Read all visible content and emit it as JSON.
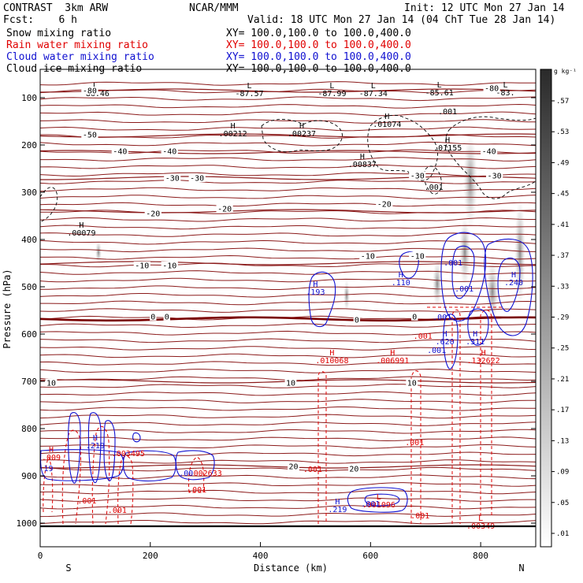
{
  "header": {
    "model": "CONTRAST  3km ARW",
    "org": "NCAR/MMM",
    "init": "Init: 12 UTC Mon 27 Jan 14",
    "fcst": "Fcst:    6 h",
    "valid": "Valid: 18 UTC Mon 27 Jan 14 (04 ChT Tue 28 Jan 14)"
  },
  "legend": [
    {
      "name": "Snow mixing ratio",
      "xy": "XY= 100.0,100.0 to 100.0,400.0",
      "color": "#000000"
    },
    {
      "name": "Rain water mixing ratio",
      "xy": "XY= 100.0,100.0 to 100.0,400.0",
      "color": "#e00000"
    },
    {
      "name": "Cloud water mixing ratio",
      "xy": "XY= 100.0,100.0 to 100.0,400.0",
      "color": "#1010d0"
    },
    {
      "name": "Cloud ice mixing ratio",
      "xy": "XY= 100.0,100.0 to 100.0,400.0",
      "color": "#000000"
    }
  ],
  "colorbar": {
    "unit": "g kg⁻¹",
    "ticks": [
      ".01",
      ".05",
      ".09",
      ".13",
      ".17",
      ".21",
      ".25",
      ".29",
      ".33",
      ".37",
      ".41",
      ".45",
      ".49",
      ".53",
      ".57"
    ]
  },
  "colors": {
    "temperature": "#8b1a1a",
    "zero_isotherm": "#7a0000",
    "rain": "#e00000",
    "cloud_water": "#1010d0",
    "ice": "#000000"
  },
  "chart_data": {
    "type": "contour-cross-section",
    "ylabel": "Pressure (hPa)",
    "xlabel": "Distance (km)",
    "xlim": [
      0,
      900
    ],
    "ylim": [
      1050,
      40
    ],
    "xticks": [
      0,
      200,
      400,
      600,
      800
    ],
    "yticks": [
      100,
      200,
      300,
      400,
      500,
      600,
      700,
      800,
      900,
      1000
    ],
    "end_labels": {
      "left": "S",
      "right": "N"
    },
    "isotherms": [
      {
        "temp": -80,
        "p": 85
      },
      {
        "temp": -50,
        "p": 180
      },
      {
        "temp": -40,
        "p": 215
      },
      {
        "temp": -30,
        "p": 270
      },
      {
        "temp": -20,
        "p": 340
      },
      {
        "temp": -10,
        "p": 450
      },
      {
        "temp": 0,
        "p": 568
      },
      {
        "temp": 10,
        "p": 700
      },
      {
        "temp": 20,
        "p": 880
      }
    ],
    "temperature_labels": [
      {
        "text": "-80",
        "x": 90,
        "p": 85
      },
      {
        "text": "-80",
        "x": 820,
        "p": 80
      },
      {
        "text": "-50",
        "x": 90,
        "p": 178
      },
      {
        "text": "-40",
        "x": 145,
        "p": 213
      },
      {
        "text": "-40",
        "x": 235,
        "p": 213
      },
      {
        "text": "-40",
        "x": 815,
        "p": 213
      },
      {
        "text": "-30",
        "x": 240,
        "p": 270
      },
      {
        "text": "-30",
        "x": 285,
        "p": 270
      },
      {
        "text": "-30",
        "x": 685,
        "p": 265
      },
      {
        "text": "-30",
        "x": 825,
        "p": 265
      },
      {
        "text": "-20",
        "x": 205,
        "p": 345
      },
      {
        "text": "-20",
        "x": 335,
        "p": 335
      },
      {
        "text": "-20",
        "x": 625,
        "p": 325
      },
      {
        "text": "-10",
        "x": 185,
        "p": 455
      },
      {
        "text": "-10",
        "x": 235,
        "p": 455
      },
      {
        "text": "-10",
        "x": 595,
        "p": 435
      },
      {
        "text": "-10",
        "x": 685,
        "p": 435
      },
      {
        "text": "0",
        "x": 205,
        "p": 563
      },
      {
        "text": "0",
        "x": 230,
        "p": 563
      },
      {
        "text": "0",
        "x": 575,
        "p": 570
      },
      {
        "text": "0",
        "x": 680,
        "p": 563
      },
      {
        "text": "10",
        "x": 20,
        "p": 703
      },
      {
        "text": "10",
        "x": 455,
        "p": 703
      },
      {
        "text": "10",
        "x": 675,
        "p": 703
      },
      {
        "text": "20",
        "x": 460,
        "p": 880
      },
      {
        "text": "20",
        "x": 570,
        "p": 885
      }
    ],
    "extrema": [
      {
        "type": "L",
        "x": 100,
        "p": 80,
        "value": "-86.46",
        "color": "black"
      },
      {
        "type": "L",
        "x": 380,
        "p": 80,
        "value": "-87.57",
        "color": "black"
      },
      {
        "type": "L",
        "x": 530,
        "p": 80,
        "value": "-87.99",
        "color": "black"
      },
      {
        "type": "L",
        "x": 605,
        "p": 80,
        "value": "-87.34",
        "color": "black"
      },
      {
        "type": "L",
        "x": 725,
        "p": 78,
        "value": "-85.61",
        "color": "black"
      },
      {
        "type": "L",
        "x": 845,
        "p": 78,
        "value": "-83.",
        "color": "black"
      },
      {
        "type": "H",
        "x": 350,
        "p": 165,
        "value": ".00212",
        "color": "black"
      },
      {
        "type": "H",
        "x": 475,
        "p": 165,
        "value": ".00237",
        "color": "black"
      },
      {
        "type": "H",
        "x": 630,
        "p": 145,
        "value": ".01074",
        "color": "black"
      },
      {
        "type": "H",
        "x": 585,
        "p": 230,
        "value": ".00837",
        "color": "black"
      },
      {
        "type": "H",
        "x": 740,
        "p": 195,
        "value": ".01155",
        "color": "black"
      },
      {
        "type": "H",
        "x": 75,
        "p": 375,
        "value": ".00079",
        "color": "black"
      },
      {
        "type": "H",
        "x": 500,
        "p": 500,
        "value": ".193",
        "color": "blue"
      },
      {
        "type": "H",
        "x": 655,
        "p": 480,
        "value": ".110",
        "color": "blue"
      },
      {
        "type": "H",
        "x": 735,
        "p": 605,
        "value": ".620",
        "color": "blue"
      },
      {
        "type": "H",
        "x": 790,
        "p": 605,
        "value": ".311",
        "color": "blue"
      },
      {
        "type": "H",
        "x": 860,
        "p": 480,
        "value": ".240",
        "color": "blue"
      },
      {
        "type": "H",
        "x": 540,
        "p": 960,
        "value": ".219",
        "color": "blue"
      },
      {
        "type": "H",
        "x": 100,
        "p": 825,
        "value": ".219",
        "color": "blue"
      },
      {
        "type": "H",
        "x": 530,
        "p": 645,
        "value": ".010068",
        "color": "red"
      },
      {
        "type": "H",
        "x": 640,
        "p": 645,
        "value": ".006991",
        "color": "red"
      },
      {
        "type": "H",
        "x": 805,
        "p": 645,
        "value": ".132622",
        "color": "red"
      },
      {
        "type": "L",
        "x": 800,
        "p": 995,
        "value": ".00349",
        "color": "red"
      },
      {
        "type": "L",
        "x": 615,
        "p": 950,
        "value": ".001096",
        "color": "red"
      },
      {
        "type": "H",
        "x": 20,
        "p": 850,
        "value": ".009",
        "color": "red"
      }
    ],
    "contour_labels": [
      {
        "text": ".001",
        "x": 740,
        "p": 135,
        "color": "black"
      },
      {
        "text": ".001",
        "x": 715,
        "p": 295,
        "color": "black"
      },
      {
        "text": ".001",
        "x": 750,
        "p": 455,
        "color": "blue"
      },
      {
        "text": ".001",
        "x": 770,
        "p": 510,
        "color": "blue"
      },
      {
        "text": ".001",
        "x": 730,
        "p": 570,
        "color": "blue"
      },
      {
        "text": ".001",
        "x": 720,
        "p": 640,
        "color": "blue"
      },
      {
        "text": ".001",
        "x": 600,
        "p": 965,
        "color": "blue"
      },
      {
        "text": ".001",
        "x": 695,
        "p": 610,
        "color": "red"
      },
      {
        "text": ".001",
        "x": 680,
        "p": 835,
        "color": "red"
      },
      {
        "text": ".001",
        "x": 495,
        "p": 892,
        "color": "red"
      },
      {
        "text": ".001",
        "x": 690,
        "p": 990,
        "color": "red"
      },
      {
        "text": ".001",
        "x": 285,
        "p": 935,
        "color": "red"
      },
      {
        "text": ".001",
        "x": 85,
        "p": 958,
        "color": "red"
      },
      {
        "text": ".001",
        "x": 140,
        "p": 978,
        "color": "red"
      },
      {
        "text": ".002633",
        "x": 300,
        "p": 900,
        "color": "red"
      },
      {
        "text": ".003495",
        "x": 160,
        "p": 858,
        "color": "red"
      },
      {
        "text": ".00",
        "x": 265,
        "p": 900,
        "color": "blue"
      },
      {
        "text": "19",
        "x": 15,
        "p": 890,
        "color": "blue"
      }
    ]
  }
}
